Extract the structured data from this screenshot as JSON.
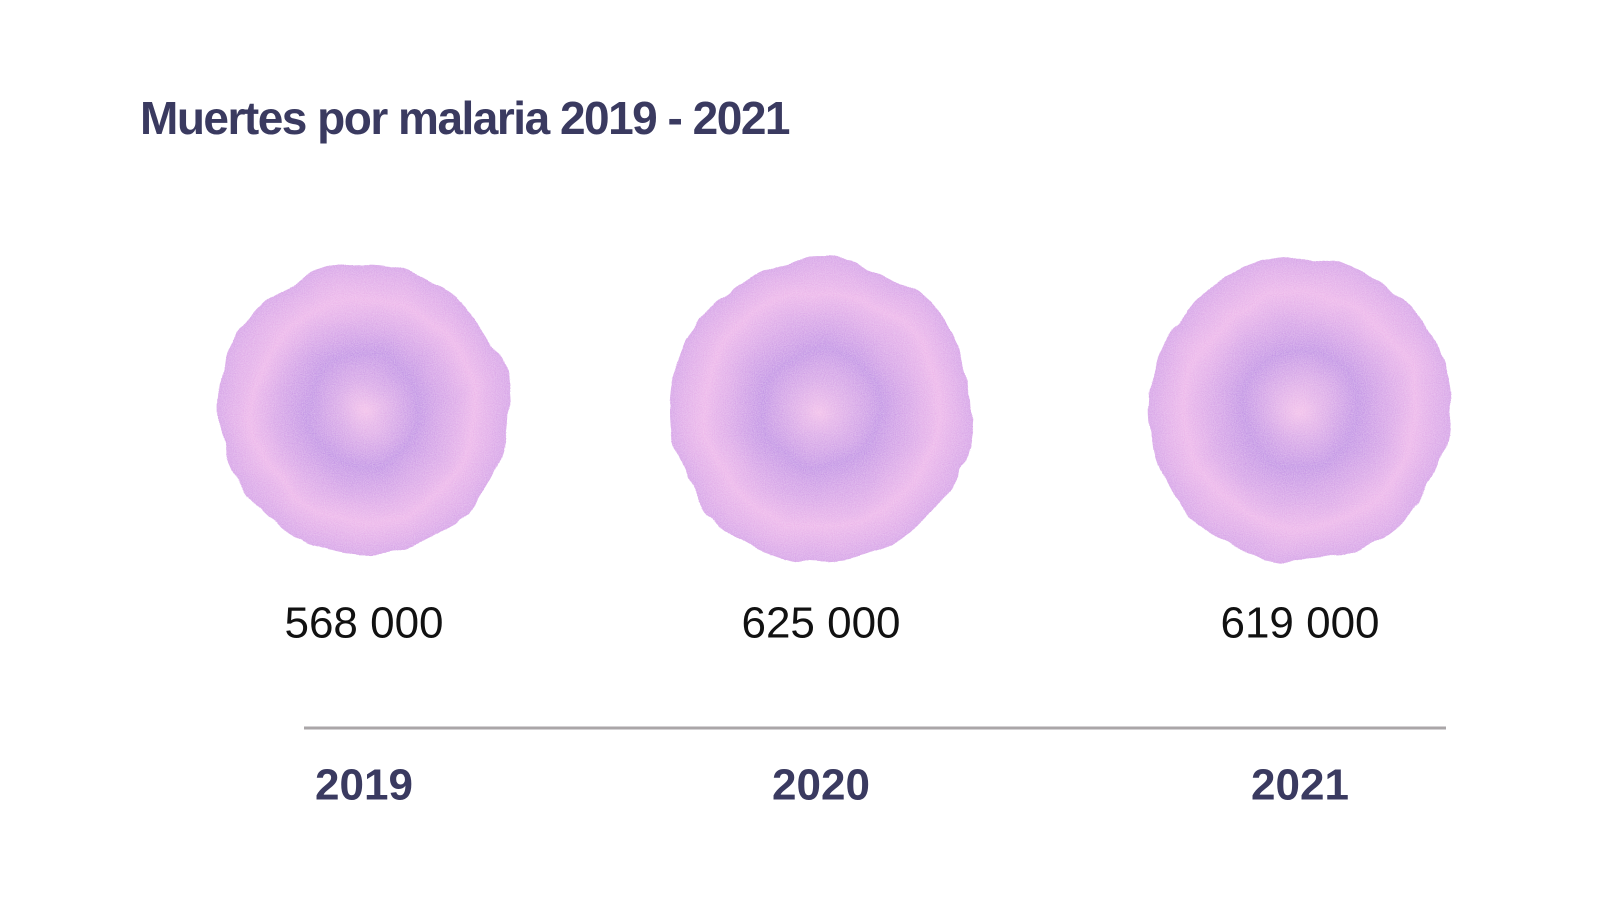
{
  "chart_data": {
    "type": "bubble",
    "title": "Muertes por malaria 2019 - 2021",
    "categories": [
      "2019",
      "2020",
      "2021"
    ],
    "values": [
      568000,
      625000,
      619000
    ],
    "value_labels": [
      "568 000",
      "625 000",
      "619 000"
    ],
    "color": "#b57ae0"
  }
}
